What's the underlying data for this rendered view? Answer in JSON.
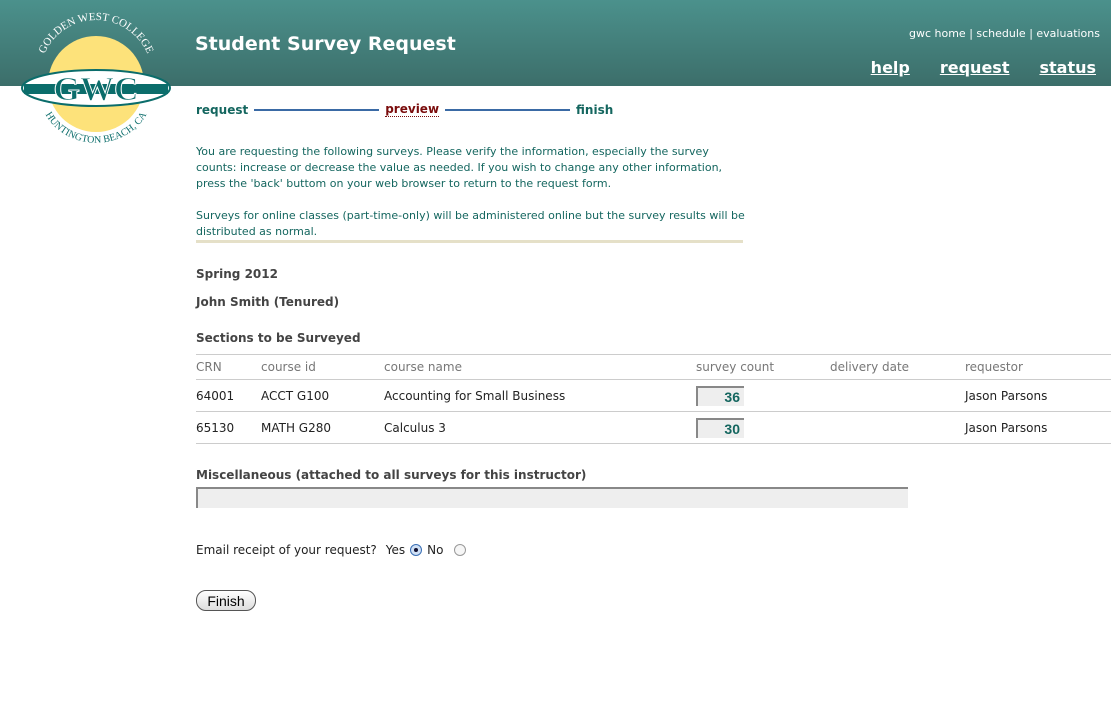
{
  "header": {
    "title": "Student Survey Request",
    "top_links": [
      "gwc home",
      "schedule",
      "evaluations"
    ],
    "main_links": [
      "help",
      "request",
      "status"
    ]
  },
  "logo": {
    "text_top": "GOLDEN WEST COLLEGE",
    "text_mid": "GWC",
    "text_bottom": "HUNTINGTON BEACH, CA"
  },
  "steps": [
    "request",
    "preview",
    "finish"
  ],
  "intro": [
    "You are requesting the following surveys. Please verify the information, especially the survey counts: increase or decrease the value as needed. If you wish to change any other information, press the 'back' buttom on your web browser to return to the request form.",
    "Surveys for online classes (part-time-only) will be administered online but the survey results will be distributed as normal."
  ],
  "term": "Spring 2012",
  "instructor": "John Smith (Tenured)",
  "sections_title": "Sections to be Surveyed",
  "table": {
    "headers": [
      "CRN",
      "course id",
      "course name",
      "survey count",
      "delivery date",
      "requestor"
    ],
    "rows": [
      {
        "crn": "64001",
        "course_id": "ACCT G100",
        "course_name": "Accounting for Small Business",
        "survey_count": "36",
        "delivery_date": "",
        "requestor": "Jason Parsons"
      },
      {
        "crn": "65130",
        "course_id": "MATH G280",
        "course_name": "Calculus 3",
        "survey_count": "30",
        "delivery_date": "",
        "requestor": "Jason Parsons"
      }
    ]
  },
  "misc_label": "Miscellaneous (attached to all surveys for this instructor)",
  "misc_value": "",
  "email": {
    "question": "Email receipt of your request?",
    "yes": "Yes",
    "no": "No",
    "selected": "Yes"
  },
  "finish_label": "Finish",
  "colors": {
    "header": "#468580",
    "teal_text": "#14665f",
    "current_step": "#7a0c0c"
  }
}
